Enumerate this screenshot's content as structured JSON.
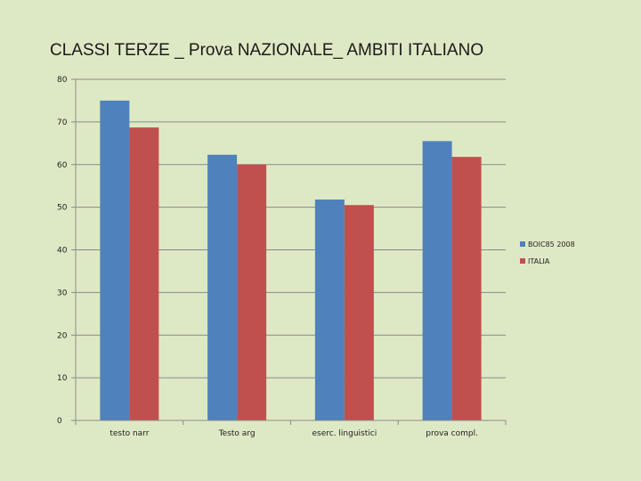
{
  "slide": {
    "title": "CLASSI TERZE _ Prova  NAZIONALE_ AMBITI ITALIANO"
  },
  "chart_data": {
    "type": "bar",
    "title": "CLASSI TERZE _ Prova  NAZIONALE_ AMBITI ITALIANO",
    "categories": [
      "testo narr",
      "Testo arg",
      "eserc. linguistici",
      "prova compl."
    ],
    "series": [
      {
        "name": "BOIC85 2008",
        "values": [
          75,
          62.3,
          51.8,
          65.5
        ],
        "color": "#4f81bd"
      },
      {
        "name": "ITALIA",
        "values": [
          68.7,
          60,
          50.5,
          61.8
        ],
        "color": "#c0504d"
      }
    ],
    "ylim": [
      0,
      80
    ],
    "yticks": [
      "0",
      "10",
      "20",
      "30",
      "40",
      "50",
      "60",
      "70",
      "80"
    ],
    "xlabel": "",
    "ylabel": "",
    "grid": true,
    "legend": "right"
  }
}
